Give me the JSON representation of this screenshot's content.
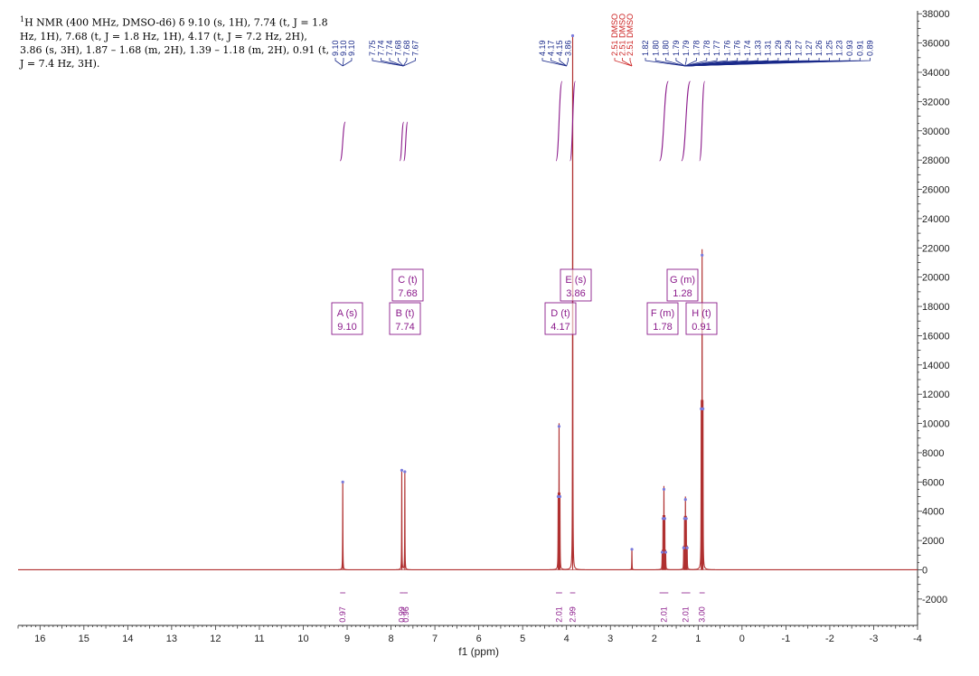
{
  "description": {
    "nucleus_sup": "1",
    "text": "H NMR (400 MHz, DMSO-d6) δ 9.10 (s, 1H), 7.74 (t, J = 1.8 Hz, 1H), 7.68 (t, J = 1.8 Hz, 1H), 4.17 (t, J = 7.2 Hz, 2H), 3.86 (s, 3H), 1.87 – 1.68 (m, 2H), 1.39 – 1.18 (m, 2H), 0.91 (t, J = 7.4 Hz, 3H)."
  },
  "colors": {
    "spectrum": "#b03030",
    "baseline": "#c87878",
    "peak_label": "#1a2a8a",
    "multiplet_box": "#8b1a8b",
    "integral": "#8b1a8b",
    "solvent_label": "#cc2222",
    "axis": "#333333"
  },
  "chart_data": {
    "type": "line",
    "xlabel": "f1 (ppm)",
    "ylabel": "",
    "xlim": [
      16.5,
      -4
    ],
    "ylim": [
      -3800,
      38200
    ],
    "x_reversed": true,
    "x_ticks": [
      16,
      15,
      14,
      13,
      12,
      11,
      10,
      9,
      8,
      7,
      6,
      5,
      4,
      3,
      2,
      1,
      0,
      -1,
      -2,
      -3,
      -4
    ],
    "y_ticks": [
      -2000,
      0,
      2000,
      4000,
      6000,
      8000,
      10000,
      12000,
      14000,
      16000,
      18000,
      20000,
      22000,
      24000,
      26000,
      28000,
      30000,
      32000,
      34000,
      36000,
      38000
    ],
    "y_axis_side": "right",
    "grid": false,
    "peaks": [
      {
        "ppm": 9.1,
        "height": 6000
      },
      {
        "ppm": 7.755,
        "height": 6800
      },
      {
        "ppm": 7.685,
        "height": 6700
      },
      {
        "ppm": 4.19,
        "height": 5000
      },
      {
        "ppm": 4.17,
        "height": 9800
      },
      {
        "ppm": 4.15,
        "height": 5000
      },
      {
        "ppm": 3.86,
        "height": 36500
      },
      {
        "ppm": 2.51,
        "height": 1400
      },
      {
        "ppm": 1.82,
        "height": 1200
      },
      {
        "ppm": 1.8,
        "height": 3500
      },
      {
        "ppm": 1.78,
        "height": 5500
      },
      {
        "ppm": 1.76,
        "height": 3500
      },
      {
        "ppm": 1.74,
        "height": 1200
      },
      {
        "ppm": 1.33,
        "height": 1500
      },
      {
        "ppm": 1.31,
        "height": 3500
      },
      {
        "ppm": 1.29,
        "height": 4800
      },
      {
        "ppm": 1.27,
        "height": 3500
      },
      {
        "ppm": 1.25,
        "height": 1500
      },
      {
        "ppm": 0.93,
        "height": 11000
      },
      {
        "ppm": 0.91,
        "height": 21500
      },
      {
        "ppm": 0.89,
        "height": 11000
      }
    ],
    "peak_labels": {
      "groups": [
        {
          "values": [
            "9.10",
            "9.10",
            "9.10"
          ],
          "target_ppm": 9.1
        },
        {
          "values": [
            "7.75",
            "7.74",
            "7.74",
            "7.68",
            "7.68",
            "7.67"
          ],
          "target_ppm": 7.72
        },
        {
          "values": [
            "4.19",
            "4.17",
            "4.15",
            "3.86"
          ],
          "target_ppm": 4.0
        },
        {
          "values": [
            "1.82",
            "1.80",
            "1.80",
            "1.79",
            "1.79",
            "1.78",
            "1.78",
            "1.77",
            "1.76",
            "1.76",
            "1.74",
            "1.33",
            "1.31",
            "1.29",
            "1.29",
            "1.27",
            "1.27",
            "1.26",
            "1.25",
            "1.23",
            "0.93",
            "0.91",
            "0.89"
          ],
          "target_ppm": 1.3
        }
      ],
      "solvent": [
        "2.51 DMSO",
        "2.51 DMSO",
        "2.51 DMSO"
      ]
    },
    "multiplets": [
      {
        "letter": "A (s)",
        "shift": "9.10"
      },
      {
        "letter": "B (t)",
        "shift": "7.74"
      },
      {
        "letter": "C (t)",
        "shift": "7.68"
      },
      {
        "letter": "D (t)",
        "shift": "4.17"
      },
      {
        "letter": "E (s)",
        "shift": "3.86"
      },
      {
        "letter": "F (m)",
        "shift": "1.78"
      },
      {
        "letter": "G (m)",
        "shift": "1.28"
      },
      {
        "letter": "H (t)",
        "shift": "0.91"
      }
    ],
    "integrals": [
      {
        "value": "0.97",
        "from": 9.16,
        "to": 9.04
      },
      {
        "value": "0.99",
        "from": 7.8,
        "to": 7.71
      },
      {
        "value": "0.96",
        "from": 7.71,
        "to": 7.62
      },
      {
        "value": "2.01",
        "from": 4.24,
        "to": 4.1
      },
      {
        "value": "2.99",
        "from": 3.92,
        "to": 3.8
      },
      {
        "value": "2.01",
        "from": 1.88,
        "to": 1.68
      },
      {
        "value": "2.01",
        "from": 1.38,
        "to": 1.18
      },
      {
        "value": "3.00",
        "from": 0.97,
        "to": 0.85
      }
    ]
  }
}
